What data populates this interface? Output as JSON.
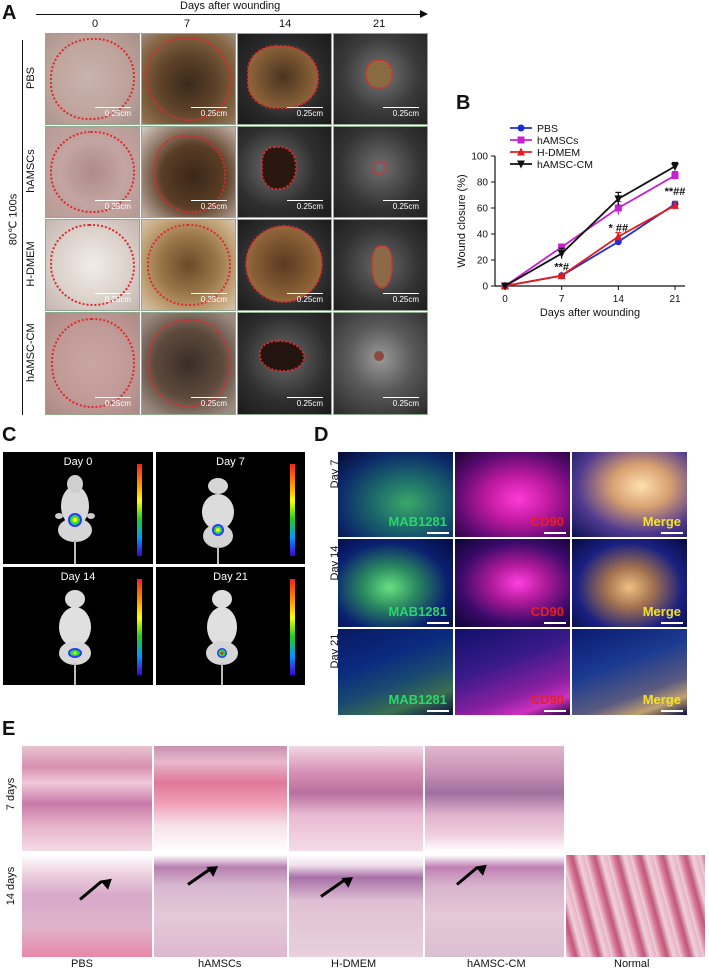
{
  "panelA": {
    "letter": "A",
    "time_axis_label": "Days after wounding",
    "days": [
      "0",
      "7",
      "14",
      "21"
    ],
    "group_label": "80℃  100s",
    "rows": [
      "PBS",
      "hAMSCs",
      "H-DMEM",
      "hAMSC-CM"
    ],
    "scale_label": "0.25cm"
  },
  "panelB": {
    "letter": "B",
    "chart_data": {
      "type": "line",
      "x": [
        0,
        7,
        14,
        21
      ],
      "xlabel": "Days after wounding",
      "ylabel": "Wound closure (%)",
      "ylim": [
        0,
        100
      ],
      "yticks": [
        0,
        20,
        40,
        60,
        80,
        100
      ],
      "grid": false,
      "legend_position": "top-left",
      "series": [
        {
          "name": "PBS",
          "color": "#1f2fd1",
          "marker": "circle",
          "values": [
            0,
            8,
            34,
            63
          ],
          "err": [
            0,
            1,
            2,
            2
          ]
        },
        {
          "name": "hAMSCs",
          "color": "#c91fd4",
          "marker": "square",
          "values": [
            0,
            30,
            60,
            85
          ],
          "err": [
            0,
            2,
            5,
            3
          ]
        },
        {
          "name": "H-DMEM",
          "color": "#e41b1b",
          "marker": "triangle",
          "values": [
            0,
            8,
            38,
            62
          ],
          "err": [
            0,
            1,
            3,
            3
          ]
        },
        {
          "name": "hAMSC-CM",
          "color": "#111111",
          "marker": "triangle-down",
          "values": [
            0,
            25,
            67,
            92
          ],
          "err": [
            0,
            4,
            5,
            3
          ]
        }
      ],
      "annotations": [
        {
          "x": 7,
          "y": 12,
          "text": "**#"
        },
        {
          "x": 14,
          "y": 42,
          "text": "* ##"
        },
        {
          "x": 21,
          "y": 70,
          "text": "**##"
        }
      ]
    }
  },
  "panelC": {
    "letter": "C",
    "panels": [
      "Day 0",
      "Day 7",
      "Day 14",
      "Day 21"
    ]
  },
  "panelD": {
    "letter": "D",
    "rows": [
      "Day 7",
      "Day 14",
      "Day 21"
    ],
    "channels": [
      "MAB1281",
      "CD90",
      "Merge"
    ],
    "channel_colors": [
      "#2bd66b",
      "#e82020",
      "#f2e22a"
    ]
  },
  "panelE": {
    "letter": "E",
    "rows": [
      "7 days",
      "14  days"
    ],
    "columns": [
      "PBS",
      "hAMSCs",
      "H-DMEM",
      "hAMSC-CM",
      "Normal"
    ]
  }
}
